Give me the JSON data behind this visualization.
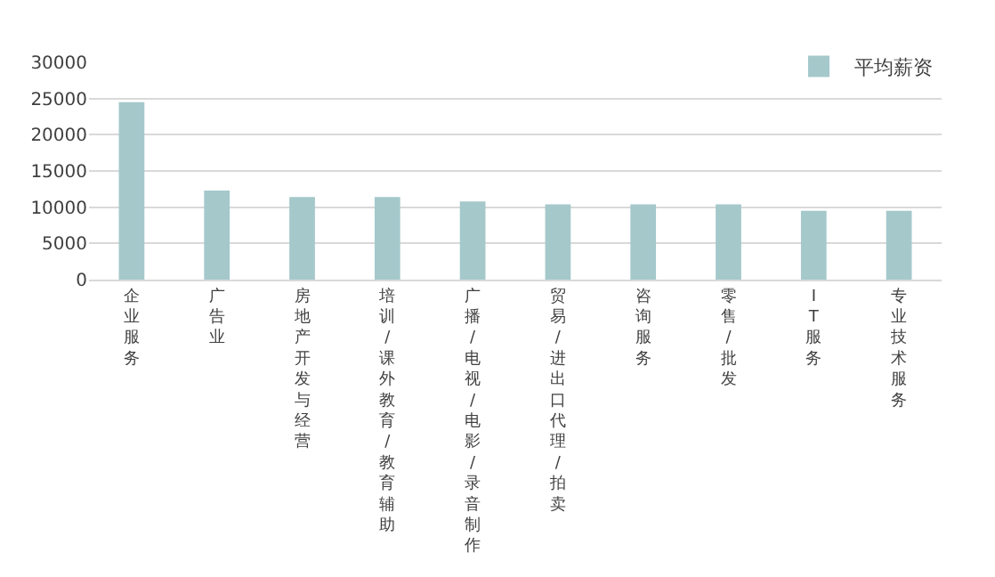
{
  "chart_data": {
    "type": "bar",
    "categories": [
      "企业服务",
      "广告业",
      "房地产开发与经营",
      "培训/课外教育/教育辅助",
      "广播/电视/电影/录音制作",
      "贸易/进出口代理/拍卖",
      "咨询服务",
      "零售/批发",
      "IT服务",
      "专业技术服务"
    ],
    "series": [
      {
        "name": "平均薪资",
        "color": "#a5c8cb",
        "values": [
          24500,
          12300,
          11400,
          11400,
          10800,
          10400,
          10400,
          10400,
          9500,
          9500
        ]
      }
    ],
    "ylim": [
      0,
      30000
    ],
    "yticks": [
      0,
      5000,
      10000,
      15000,
      20000,
      25000,
      30000
    ],
    "grid": "y",
    "legend": "top right"
  }
}
